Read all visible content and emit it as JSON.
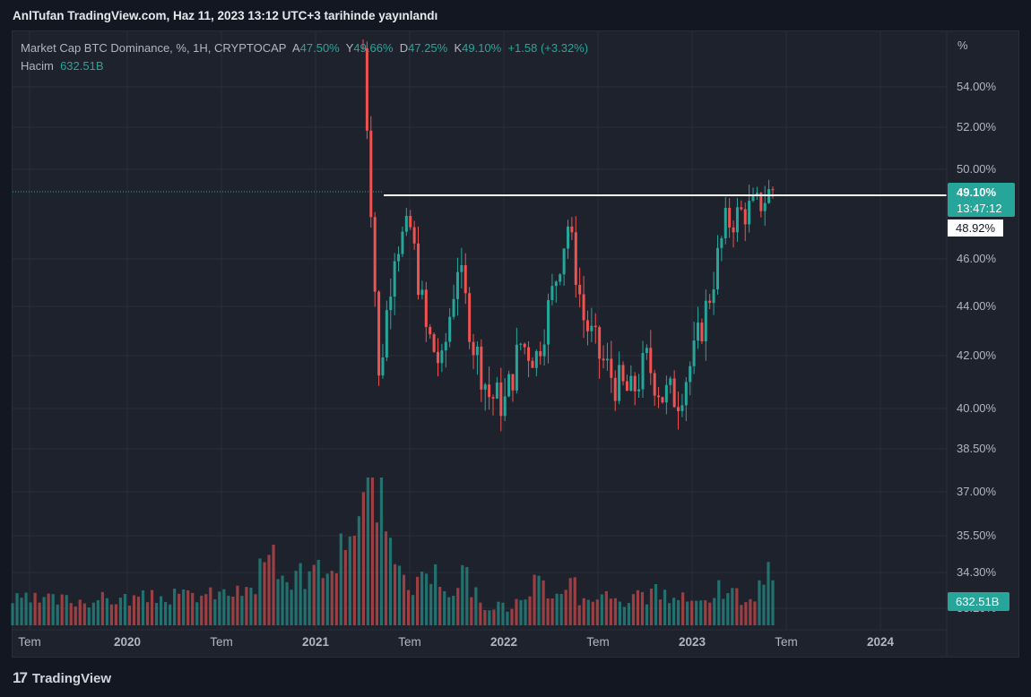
{
  "header": {
    "published": "AnlTufan TradingView.com, Haz 11, 2023 13:12 UTC+3 tarihinde yayınlandı"
  },
  "legend": {
    "title": "Market Cap BTC Dominance, %, 1H, CRYPTOCAP",
    "open_label": "A",
    "open": "47.50%",
    "high_label": "Y",
    "high": "49.66%",
    "low_label": "D",
    "low": "47.25%",
    "close_label": "K",
    "close": "49.10%",
    "change": "+1.58 (+3.32%)",
    "volume_label": "Hacim",
    "volume": "632.51B"
  },
  "price_axis": {
    "unit": "%",
    "ticks": [
      "54.00%",
      "52.00%",
      "50.00%",
      "46.00%",
      "44.00%",
      "42.00%",
      "40.00%",
      "38.50%",
      "37.00%",
      "35.50%",
      "34.30%",
      "33.20%"
    ]
  },
  "time_axis": {
    "ticks": [
      "Tem",
      "2020",
      "Tem",
      "2021",
      "Tem",
      "2022",
      "Tem",
      "2023",
      "Tem",
      "2024"
    ]
  },
  "price_tags": {
    "last_price": "49.10%",
    "countdown": "13:47:12",
    "line_level": "48.92%",
    "volume": "632.51B"
  },
  "colors": {
    "up": "#26a69a",
    "down": "#ef5350",
    "background": "#1e222d",
    "page": "#131722"
  },
  "footer": {
    "brand": "TradingView",
    "logo_icon": "tradingview-logo-icon"
  },
  "chart_data": {
    "type": "candlestick",
    "title": "Market Cap BTC Dominance, %, 1H, CRYPTOCAP",
    "y_scale": "log",
    "horizontal_line": 48.92,
    "x": [
      "2021-04",
      "2021-05",
      "2021-06",
      "2021-07",
      "2021-08",
      "2021-09",
      "2021-10",
      "2021-11",
      "2021-12",
      "2022-01",
      "2022-02",
      "2022-03",
      "2022-04",
      "2022-05",
      "2022-06",
      "2022-07",
      "2022-08",
      "2022-09",
      "2022-10",
      "2022-11",
      "2022-12",
      "2023-01",
      "2023-02",
      "2023-03",
      "2023-04",
      "2023-05",
      "2023-06"
    ],
    "close": [
      56.0,
      41.0,
      46.5,
      47.3,
      43.0,
      41.5,
      45.8,
      42.5,
      40.5,
      40.2,
      42.5,
      42.0,
      44.5,
      47.5,
      43.5,
      42.0,
      41.0,
      40.5,
      41.8,
      40.5,
      40.5,
      42.0,
      44.5,
      47.5,
      48.0,
      48.3,
      49.1
    ],
    "volume_b": [
      1530,
      1480,
      620,
      500,
      600,
      480,
      560,
      380,
      270,
      220,
      280,
      480,
      380,
      520,
      340,
      380,
      360,
      300,
      340,
      380,
      320,
      300,
      380,
      430,
      350,
      260,
      632.51
    ]
  }
}
